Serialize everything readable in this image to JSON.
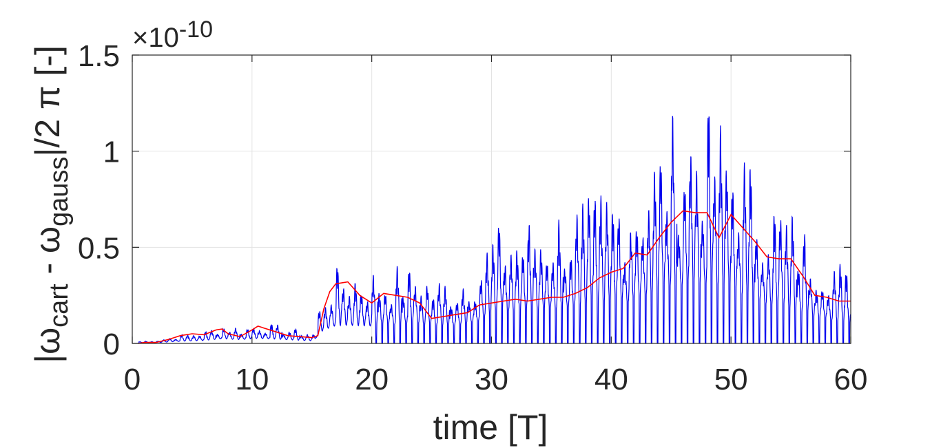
{
  "chart_data": {
    "type": "line",
    "xlabel": "time [T]",
    "ylabel": {
      "prefix": "|ω",
      "sub1": "cart",
      "mid": " - ω",
      "sub2": "gauss",
      "suffix": "|/2 π [-]"
    },
    "y_multiplier": "×10",
    "y_multiplier_exponent": "-10",
    "xlim": [
      0,
      60
    ],
    "ylim": [
      0,
      1.5
    ],
    "grid": true,
    "x_ticks": [
      0,
      10,
      20,
      30,
      40,
      50,
      60
    ],
    "y_ticks": [
      0,
      0.5,
      1,
      1.5
    ],
    "x_tick_labels": [
      "0",
      "10",
      "20",
      "30",
      "40",
      "50",
      "60"
    ],
    "y_tick_labels": [
      "0",
      "0.5",
      "1",
      "1.5"
    ],
    "series": [
      {
        "color": "#0000ee",
        "style": "oscillating",
        "period": 0.5,
        "envelope_x": [
          0,
          2,
          4,
          5,
          6,
          7.5,
          9,
          10.5,
          12,
          13.5,
          15.2,
          15.6,
          16.2,
          17,
          18,
          19,
          20,
          22,
          24,
          25,
          27,
          29,
          30,
          32,
          35,
          38,
          40,
          42,
          44,
          46,
          48,
          49,
          50,
          52,
          54,
          56,
          58,
          60
        ],
        "envelope_y": [
          0.01,
          0.02,
          0.05,
          0.06,
          0.07,
          0.11,
          0.09,
          0.12,
          0.1,
          0.08,
          0.06,
          0.25,
          0.34,
          0.42,
          0.43,
          0.42,
          0.41,
          0.42,
          0.43,
          0.36,
          0.38,
          0.5,
          0.65,
          0.68,
          0.74,
          0.8,
          0.88,
          0.95,
          1.15,
          1.3,
          1.3,
          1.22,
          1.18,
          0.95,
          0.8,
          0.65,
          0.55,
          0.38
        ]
      },
      {
        "color": "#ff0000",
        "style": "smooth",
        "x": [
          0.5,
          1,
          2,
          3,
          4,
          5,
          6,
          7,
          7.5,
          8,
          9,
          10,
          10.5,
          11,
          12,
          13,
          14,
          15,
          15.5,
          16,
          16.5,
          17,
          18,
          19,
          20,
          21,
          22,
          23,
          24,
          25,
          26,
          27,
          28,
          29,
          30,
          31,
          32,
          33,
          34,
          35,
          36,
          37,
          38,
          39,
          40,
          41,
          42,
          43,
          44,
          45,
          46,
          47,
          48,
          49,
          50,
          51,
          52,
          53,
          54,
          55,
          56,
          57,
          58,
          59,
          60
        ],
        "y": [
          0.0,
          0.005,
          0.005,
          0.02,
          0.04,
          0.05,
          0.045,
          0.07,
          0.075,
          0.05,
          0.035,
          0.07,
          0.09,
          0.08,
          0.06,
          0.04,
          0.035,
          0.03,
          0.04,
          0.18,
          0.27,
          0.31,
          0.32,
          0.25,
          0.21,
          0.26,
          0.25,
          0.24,
          0.21,
          0.13,
          0.14,
          0.15,
          0.16,
          0.2,
          0.21,
          0.22,
          0.23,
          0.22,
          0.23,
          0.24,
          0.24,
          0.26,
          0.29,
          0.34,
          0.37,
          0.39,
          0.47,
          0.46,
          0.55,
          0.63,
          0.69,
          0.68,
          0.68,
          0.55,
          0.67,
          0.6,
          0.53,
          0.45,
          0.44,
          0.44,
          0.35,
          0.25,
          0.24,
          0.22,
          0.22
        ]
      }
    ]
  }
}
